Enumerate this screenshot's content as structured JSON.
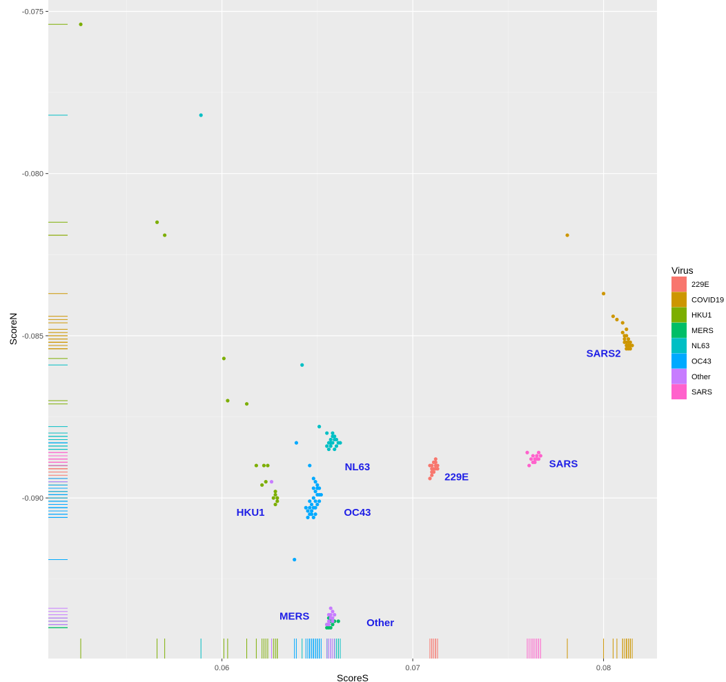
{
  "chart_data": {
    "type": "scatter",
    "title": "",
    "xlabel": "ScoreS",
    "ylabel": "ScoreN",
    "xlim": [
      0.0509,
      0.0828
    ],
    "ylim": [
      -0.09495,
      -0.07465
    ],
    "grid": true,
    "rug": true,
    "x_ticks": [
      {
        "value": 0.06,
        "label": "0.06"
      },
      {
        "value": 0.07,
        "label": "0.07"
      },
      {
        "value": 0.08,
        "label": "0.08"
      }
    ],
    "y_ticks": [
      {
        "value": -0.075,
        "label": "-0.075"
      },
      {
        "value": -0.08,
        "label": "-0.080"
      },
      {
        "value": -0.085,
        "label": "-0.085"
      },
      {
        "value": -0.09,
        "label": "-0.090"
      }
    ],
    "legend": {
      "title": "Virus",
      "position": "right",
      "items": [
        {
          "label": "229E",
          "color": "#F8766D"
        },
        {
          "label": "COVID19",
          "color": "#CD9600"
        },
        {
          "label": "HKU1",
          "color": "#7CAE00"
        },
        {
          "label": "MERS",
          "color": "#00BE67"
        },
        {
          "label": "NL63",
          "color": "#00BFC4"
        },
        {
          "label": "OC43",
          "color": "#00A9FF"
        },
        {
          "label": "Other",
          "color": "#C77CFF"
        },
        {
          "label": "SARS",
          "color": "#FF61CC"
        }
      ]
    },
    "annotations": [
      {
        "text": "SARS2",
        "x": 0.08,
        "y": -0.08565,
        "color": "#1E1EE6"
      },
      {
        "text": "NL63",
        "x": 0.0671,
        "y": -0.08915,
        "color": "#1E1EE6"
      },
      {
        "text": "229E",
        "x": 0.0723,
        "y": -0.08945,
        "color": "#1E1EE6"
      },
      {
        "text": "SARS",
        "x": 0.0779,
        "y": -0.08905,
        "color": "#1E1EE6"
      },
      {
        "text": "HKU1",
        "x": 0.0615,
        "y": -0.09055,
        "color": "#1E1EE6"
      },
      {
        "text": "OC43",
        "x": 0.0671,
        "y": -0.09055,
        "color": "#1E1EE6"
      },
      {
        "text": "MERS",
        "x": 0.0638,
        "y": -0.09375,
        "color": "#1E1EE6"
      },
      {
        "text": "Other",
        "x": 0.0683,
        "y": -0.09395,
        "color": "#1E1EE6"
      }
    ],
    "series": [
      {
        "name": "229E",
        "color": "#F8766D",
        "points": [
          [
            0.0709,
            -0.089
          ],
          [
            0.071,
            -0.0893
          ],
          [
            0.0711,
            -0.0891
          ],
          [
            0.0712,
            -0.0889
          ],
          [
            0.0713,
            -0.089
          ],
          [
            0.0711,
            -0.0889
          ],
          [
            0.0712,
            -0.0888
          ],
          [
            0.071,
            -0.0892
          ],
          [
            0.0709,
            -0.0894
          ],
          [
            0.071,
            -0.0891
          ],
          [
            0.0711,
            -0.0892
          ],
          [
            0.0713,
            -0.0891
          ],
          [
            0.0712,
            -0.089
          ],
          [
            0.071,
            -0.089
          ],
          [
            0.0712,
            -0.0891
          ]
        ]
      },
      {
        "name": "COVID19",
        "color": "#CD9600",
        "points": [
          [
            0.0781,
            -0.0819
          ],
          [
            0.08,
            -0.0837
          ],
          [
            0.0805,
            -0.0844
          ],
          [
            0.0807,
            -0.0845
          ],
          [
            0.081,
            -0.0846
          ],
          [
            0.0812,
            -0.0848
          ],
          [
            0.081,
            -0.0849
          ],
          [
            0.0811,
            -0.085
          ],
          [
            0.0812,
            -0.085
          ],
          [
            0.0813,
            -0.0851
          ],
          [
            0.0811,
            -0.0851
          ],
          [
            0.0812,
            -0.0852
          ],
          [
            0.0813,
            -0.0852
          ],
          [
            0.0814,
            -0.0853
          ],
          [
            0.0813,
            -0.0853
          ],
          [
            0.0812,
            -0.0853
          ],
          [
            0.0814,
            -0.0852
          ],
          [
            0.0813,
            -0.0854
          ],
          [
            0.0812,
            -0.0854
          ],
          [
            0.0814,
            -0.0854
          ],
          [
            0.0811,
            -0.0852
          ],
          [
            0.0815,
            -0.0853
          ]
        ]
      },
      {
        "name": "HKU1",
        "color": "#7CAE00",
        "points": [
          [
            0.0526,
            -0.0754
          ],
          [
            0.0566,
            -0.0815
          ],
          [
            0.057,
            -0.0819
          ],
          [
            0.0601,
            -0.0857
          ],
          [
            0.0603,
            -0.087
          ],
          [
            0.0613,
            -0.0871
          ],
          [
            0.0618,
            -0.089
          ],
          [
            0.0622,
            -0.089
          ],
          [
            0.0624,
            -0.089
          ],
          [
            0.0621,
            -0.0896
          ],
          [
            0.0623,
            -0.0895
          ],
          [
            0.0627,
            -0.09
          ],
          [
            0.0628,
            -0.0902
          ],
          [
            0.0628,
            -0.0898
          ],
          [
            0.0629,
            -0.0901
          ],
          [
            0.0628,
            -0.0899
          ],
          [
            0.0629,
            -0.09
          ]
        ]
      },
      {
        "name": "MERS",
        "color": "#00BE67",
        "points": [
          [
            0.0655,
            -0.0939
          ],
          [
            0.0656,
            -0.094
          ],
          [
            0.0657,
            -0.0938
          ],
          [
            0.0658,
            -0.0939
          ],
          [
            0.0659,
            -0.0938
          ],
          [
            0.0656,
            -0.0937
          ],
          [
            0.0657,
            -0.094
          ],
          [
            0.0655,
            -0.094
          ],
          [
            0.0661,
            -0.0938
          ]
        ]
      },
      {
        "name": "NL63",
        "color": "#00BFC4",
        "points": [
          [
            0.0589,
            -0.0782
          ],
          [
            0.0642,
            -0.0859
          ],
          [
            0.0651,
            -0.0878
          ],
          [
            0.0655,
            -0.088
          ],
          [
            0.0657,
            -0.0882
          ],
          [
            0.0658,
            -0.0883
          ],
          [
            0.0659,
            -0.0882
          ],
          [
            0.066,
            -0.0884
          ],
          [
            0.0661,
            -0.0883
          ],
          [
            0.0658,
            -0.0881
          ],
          [
            0.0656,
            -0.0885
          ],
          [
            0.0657,
            -0.0884
          ],
          [
            0.0659,
            -0.0885
          ],
          [
            0.0655,
            -0.0884
          ],
          [
            0.066,
            -0.0882
          ],
          [
            0.0662,
            -0.0883
          ],
          [
            0.0658,
            -0.088
          ],
          [
            0.0659,
            -0.0881
          ],
          [
            0.0657,
            -0.0883
          ],
          [
            0.0656,
            -0.0883
          ]
        ]
      },
      {
        "name": "OC43",
        "color": "#00A9FF",
        "points": [
          [
            0.0639,
            -0.0883
          ],
          [
            0.0646,
            -0.089
          ],
          [
            0.0648,
            -0.0894
          ],
          [
            0.0649,
            -0.0895
          ],
          [
            0.065,
            -0.0896
          ],
          [
            0.0648,
            -0.0897
          ],
          [
            0.0649,
            -0.0898
          ],
          [
            0.065,
            -0.0899
          ],
          [
            0.0651,
            -0.0899
          ],
          [
            0.0648,
            -0.09
          ],
          [
            0.0649,
            -0.0901
          ],
          [
            0.065,
            -0.0902
          ],
          [
            0.0647,
            -0.0902
          ],
          [
            0.0648,
            -0.0903
          ],
          [
            0.0649,
            -0.0903
          ],
          [
            0.0646,
            -0.0903
          ],
          [
            0.0647,
            -0.0904
          ],
          [
            0.0645,
            -0.0904
          ],
          [
            0.0646,
            -0.0905
          ],
          [
            0.0647,
            -0.0905
          ],
          [
            0.0645,
            -0.0906
          ],
          [
            0.0651,
            -0.0897
          ],
          [
            0.0652,
            -0.0899
          ],
          [
            0.065,
            -0.0897
          ],
          [
            0.0651,
            -0.0901
          ],
          [
            0.0649,
            -0.0905
          ],
          [
            0.0648,
            -0.0906
          ],
          [
            0.0644,
            -0.0903
          ],
          [
            0.0646,
            -0.0901
          ],
          [
            0.0638,
            -0.0919
          ]
        ]
      },
      {
        "name": "Other",
        "color": "#C77CFF",
        "points": [
          [
            0.0626,
            -0.0895
          ],
          [
            0.0657,
            -0.0934
          ],
          [
            0.0658,
            -0.0935
          ],
          [
            0.0656,
            -0.0936
          ],
          [
            0.0657,
            -0.0936
          ],
          [
            0.0658,
            -0.0937
          ],
          [
            0.0656,
            -0.0938
          ],
          [
            0.0657,
            -0.0937
          ],
          [
            0.0655,
            -0.0939
          ],
          [
            0.0656,
            -0.0939
          ],
          [
            0.0659,
            -0.0936
          ],
          [
            0.0658,
            -0.0938
          ]
        ]
      },
      {
        "name": "SARS",
        "color": "#FF61CC",
        "points": [
          [
            0.076,
            -0.0886
          ],
          [
            0.0762,
            -0.0888
          ],
          [
            0.0763,
            -0.0887
          ],
          [
            0.0764,
            -0.0888
          ],
          [
            0.0765,
            -0.0887
          ],
          [
            0.0766,
            -0.0886
          ],
          [
            0.0764,
            -0.0889
          ],
          [
            0.0763,
            -0.0889
          ],
          [
            0.0767,
            -0.0887
          ],
          [
            0.0761,
            -0.089
          ],
          [
            0.0765,
            -0.0888
          ],
          [
            0.0766,
            -0.0888
          ]
        ]
      }
    ]
  }
}
